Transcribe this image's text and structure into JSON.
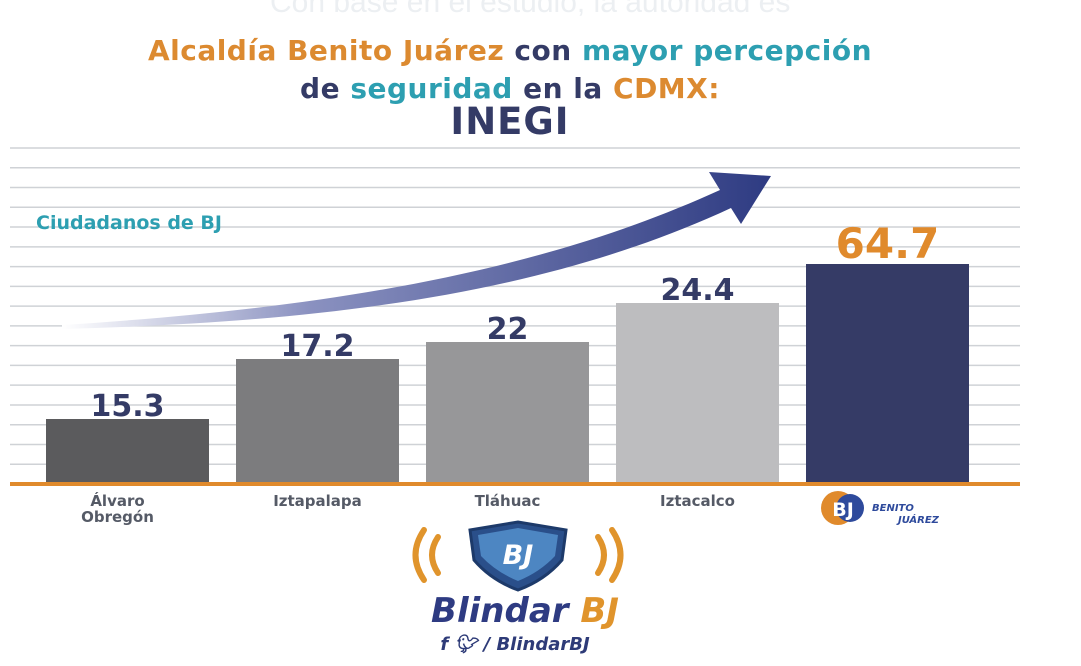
{
  "background_text": "Con base en el estudio, la autoridad es",
  "title": {
    "part1": "Alcaldía Benito Juárez",
    "part2": " con ",
    "part3": "mayor percepción",
    "part4": "de ",
    "part5": "seguridad",
    "part6": " en la ",
    "part7": "CDMX:",
    "line3": "INEGI"
  },
  "annotation": "Ciudadanos de BJ",
  "chart_data": {
    "type": "bar",
    "categories": [
      "Álvaro Obregón",
      "Iztapalapa",
      "Tláhuac",
      "Iztacalco",
      "Benito Juárez"
    ],
    "values": [
      15.3,
      17.2,
      22,
      24.4,
      64.7
    ],
    "value_labels": [
      "15.3",
      "17.2",
      "22",
      "24.4",
      "64.7"
    ],
    "category_labels": [
      [
        "Álvaro",
        "Obregón"
      ],
      [
        "Iztapalapa"
      ],
      [
        "Tláhuac"
      ],
      [
        "Iztacalco"
      ]
    ],
    "colors": [
      "#5b5b5d",
      "#7c7c7e",
      "#979799",
      "#bdbdbf",
      "#353b66"
    ],
    "highlight_label_color": "#e08a2c",
    "ylim": [
      0,
      70
    ],
    "grid": true,
    "last_category_logo": {
      "initials": "BJ",
      "line1": "BENITO",
      "line2": "JUÁREZ"
    }
  },
  "footer": {
    "shield_initials": "BJ",
    "brand_part1": "Blindar ",
    "brand_part2": "BJ",
    "social_icons": [
      "facebook-icon",
      "twitter-icon"
    ],
    "handle": "/ BlindarBJ"
  },
  "colors": {
    "orange": "#dc8a30",
    "teal": "#2d9fb1",
    "navy": "#343b66",
    "baseline": "#e08a2c",
    "arrow": "#2e3b82"
  }
}
